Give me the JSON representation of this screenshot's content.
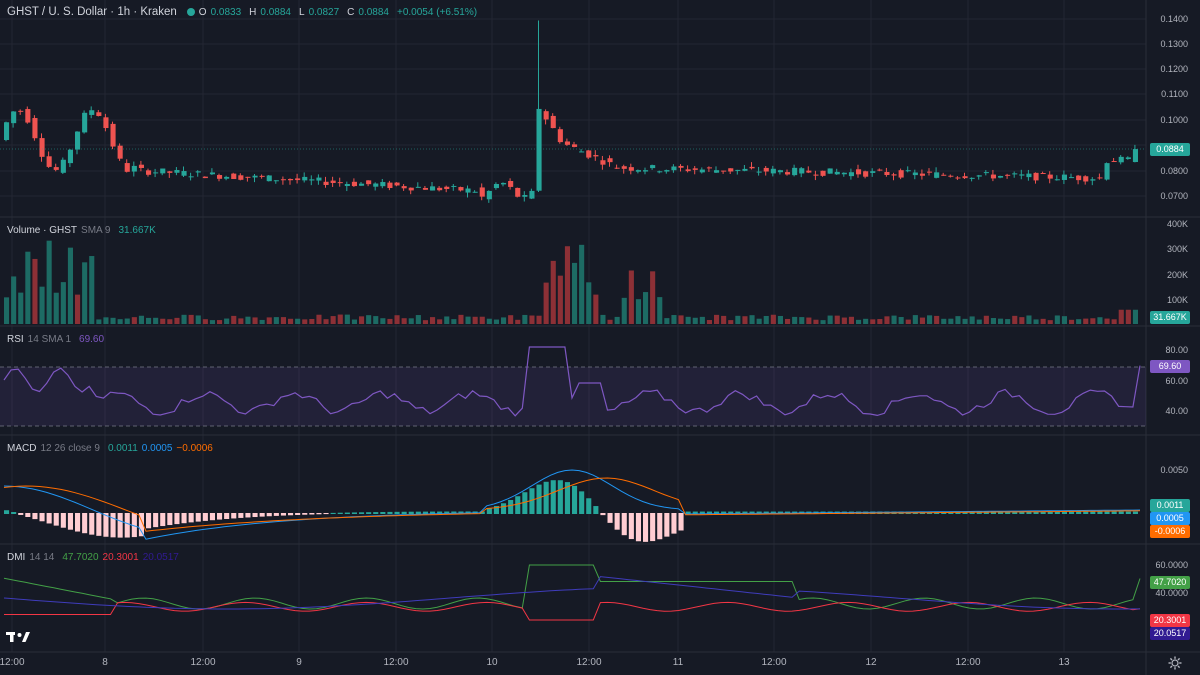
{
  "header": {
    "symbol": "GHST / U. S. Dollar · 1h · Kraken",
    "ohlc": [
      {
        "k": "O",
        "v": "0.0833"
      },
      {
        "k": "H",
        "v": "0.0884"
      },
      {
        "k": "L",
        "v": "0.0827"
      },
      {
        "k": "C",
        "v": "0.0884"
      },
      {
        "k": "chg",
        "v": "+0.0054 (+6.51%)"
      }
    ]
  },
  "colors": {
    "up": "#26a69a",
    "down": "#ef5350",
    "bg": "#161a25",
    "grid": "#232632",
    "rsi": "#7e57c2",
    "macd": "#2196f3",
    "signal": "#ff6d00",
    "plus_di": "#43a047",
    "minus_di": "#f23645",
    "adx": "#311b92"
  },
  "price_axis": [
    "0.1400",
    "0.1300",
    "0.1200",
    "0.1100",
    "0.1000",
    "0.0800",
    "0.0700"
  ],
  "price_tag": "0.0884",
  "volume": {
    "title": "Volume · GHST",
    "sma_label": "SMA 9",
    "sma_value": "31.667K",
    "axis": [
      "400K",
      "300K",
      "200K",
      "100K"
    ],
    "tag": "31.667K"
  },
  "rsi": {
    "title": "RSI",
    "params": "14 SMA 1",
    "value": "69.60",
    "axis": [
      "80.00",
      "60.00",
      "40.00"
    ],
    "tag": "69.60"
  },
  "macd": {
    "title": "MACD",
    "params": "12 26 close 9",
    "v1": "0.0011",
    "v2": "0.0005",
    "v3": "−0.0006",
    "axis": [
      "0.0050"
    ],
    "tags": [
      "0.0011",
      "0.0005",
      "-0.0006"
    ]
  },
  "dmi": {
    "title": "DMI",
    "params": "14 14",
    "v1": "47.7020",
    "v2": "20.3001",
    "v3": "20.0517",
    "axis": [
      "60.0000",
      "40.0000"
    ],
    "tags": [
      "47.7020",
      "20.3001",
      "20.0517"
    ]
  },
  "time_axis": [
    "12:00",
    "8",
    "12:00",
    "9",
    "12:00",
    "10",
    "12:00",
    "11",
    "12:00",
    "12",
    "12:00",
    "13"
  ],
  "icons": {
    "logo": "tradingview-logo-icon",
    "settings": "gear-icon"
  }
}
